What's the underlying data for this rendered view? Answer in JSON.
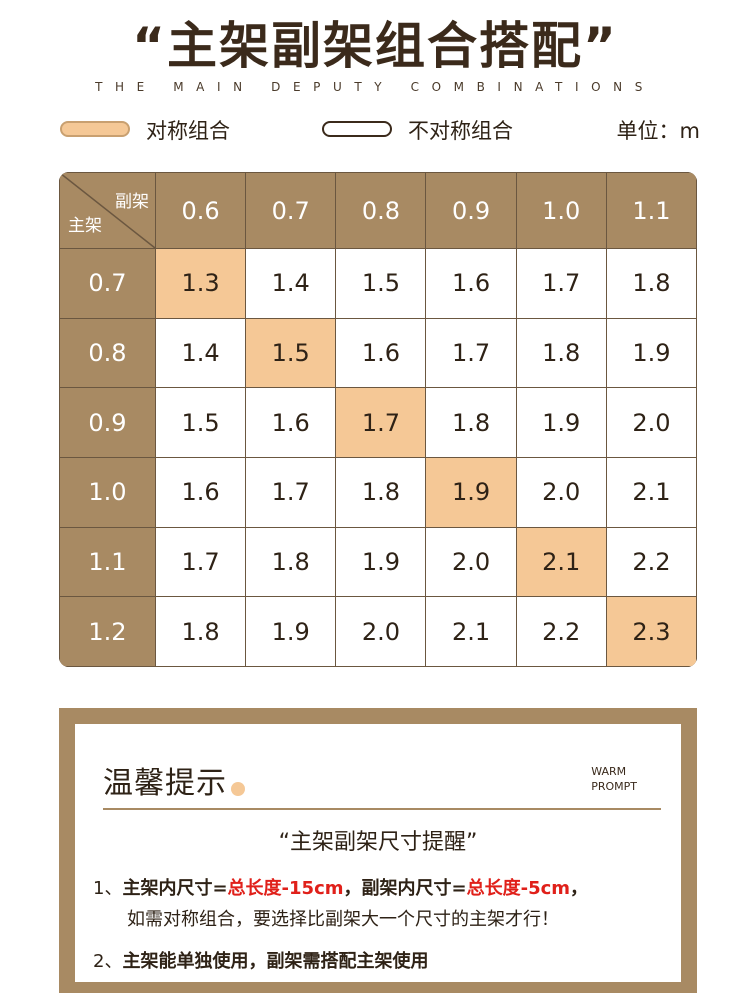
{
  "title": "“主架副架组合搭配”",
  "subtitle": "THE MAIN DEPUTY COMBINATIONS",
  "legend": {
    "symmetric": "对称组合",
    "asymmetric": "不对称组合",
    "unit": "单位：m",
    "symmetric_color": "#f5c896",
    "asymmetric_color": "#ffffff"
  },
  "table": {
    "corner_col_label": "副架",
    "corner_row_label": "主架",
    "col_headers": [
      "0.6",
      "0.7",
      "0.8",
      "0.9",
      "1.0",
      "1.1"
    ],
    "rows": [
      {
        "header": "0.7",
        "cells": [
          "1.3",
          "1.4",
          "1.5",
          "1.6",
          "1.7",
          "1.8"
        ],
        "highlight": 0
      },
      {
        "header": "0.8",
        "cells": [
          "1.4",
          "1.5",
          "1.6",
          "1.7",
          "1.8",
          "1.9"
        ],
        "highlight": 1
      },
      {
        "header": "0.9",
        "cells": [
          "1.5",
          "1.6",
          "1.7",
          "1.8",
          "1.9",
          "2.0"
        ],
        "highlight": 2
      },
      {
        "header": "1.0",
        "cells": [
          "1.6",
          "1.7",
          "1.8",
          "1.9",
          "2.0",
          "2.1"
        ],
        "highlight": 3
      },
      {
        "header": "1.1",
        "cells": [
          "1.7",
          "1.8",
          "1.9",
          "2.0",
          "2.1",
          "2.2"
        ],
        "highlight": 4
      },
      {
        "header": "1.2",
        "cells": [
          "1.8",
          "1.9",
          "2.0",
          "2.1",
          "2.2",
          "2.3"
        ],
        "highlight": 5
      }
    ],
    "header_color": "#a88a63"
  },
  "tips": {
    "title": "温馨提示",
    "title_en_line1": "WARM",
    "title_en_line2": "PROMPT",
    "heading": "“主架副架尺寸提醒”",
    "tip1_num": "1、",
    "tip1_a": "主架内尺寸=",
    "tip1_b": "总长度-15cm",
    "tip1_c": "，",
    "tip1_d": "副架内尺寸=",
    "tip1_e": "总长度-5cm",
    "tip1_f": "，",
    "tip1_line2": "如需对称组合，要选择比副架大一个尺寸的主架才行！",
    "tip2_num": "2、",
    "tip2": "主架能单独使用，副架需搭配主架使用",
    "accent_color": "#e0201a"
  }
}
